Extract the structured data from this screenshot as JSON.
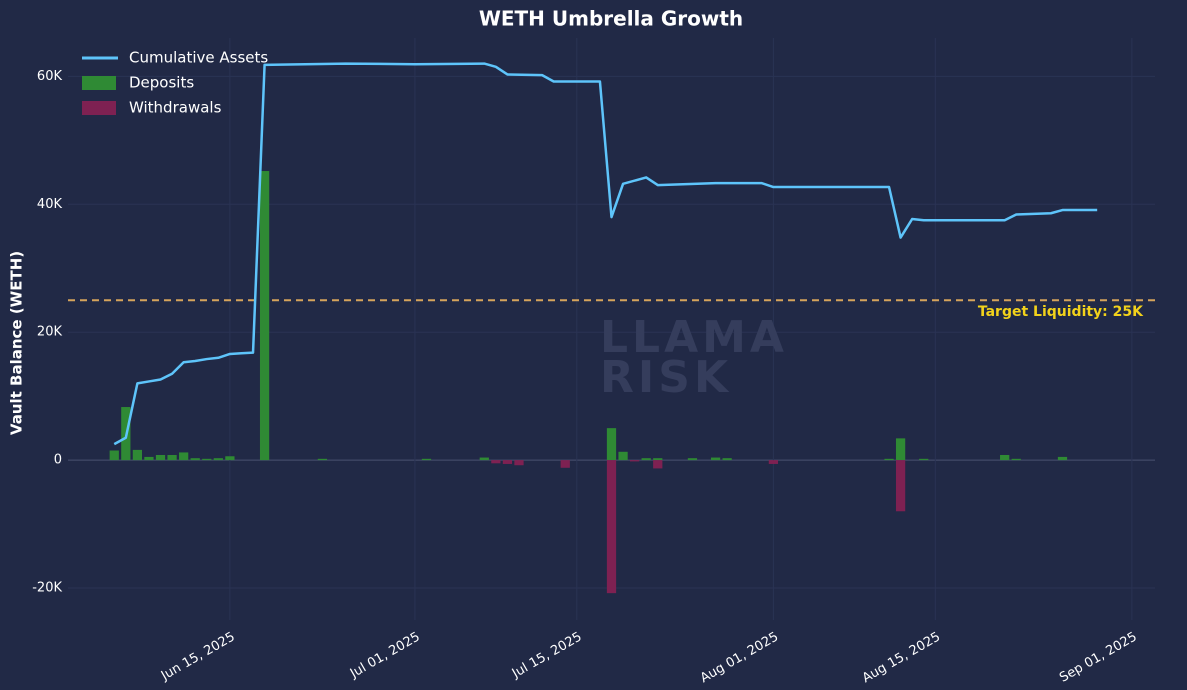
{
  "chart_data": {
    "type": "combo",
    "title": "WETH Umbrella Growth",
    "ylabel": "Vault Balance (WETH)",
    "xlim": [
      "2025-06-01",
      "2025-09-03"
    ],
    "xticks": [
      {
        "value": "2025-06-15",
        "label": "Jun 15, 2025"
      },
      {
        "value": "2025-07-01",
        "label": "Jul 01, 2025"
      },
      {
        "value": "2025-07-15",
        "label": "Jul 15, 2025"
      },
      {
        "value": "2025-08-01",
        "label": "Aug 01, 2025"
      },
      {
        "value": "2025-08-15",
        "label": "Aug 15, 2025"
      },
      {
        "value": "2025-09-01",
        "label": "Sep 01, 2025"
      }
    ],
    "ylim": [
      -25000,
      66000
    ],
    "yticks": [
      {
        "value": -20000,
        "label": "-20K"
      },
      0,
      {
        "value": 20000,
        "label": "20K"
      },
      {
        "value": 40000,
        "label": "40K"
      },
      {
        "value": 60000,
        "label": "60K"
      }
    ],
    "grid": true,
    "legend": "upper left",
    "series": [
      {
        "name": "Cumulative Assets",
        "type": "line",
        "color": "#5ec4fa",
        "x": [
          "2025-06-05",
          "2025-06-06",
          "2025-06-07",
          "2025-06-08",
          "2025-06-09",
          "2025-06-10",
          "2025-06-11",
          "2025-06-12",
          "2025-06-13",
          "2025-06-14",
          "2025-06-15",
          "2025-06-16",
          "2025-06-17",
          "2025-06-18",
          "2025-06-25",
          "2025-07-01",
          "2025-07-07",
          "2025-07-08",
          "2025-07-09",
          "2025-07-12",
          "2025-07-13",
          "2025-07-17",
          "2025-07-18",
          "2025-07-19",
          "2025-07-21",
          "2025-07-22",
          "2025-07-27",
          "2025-07-31",
          "2025-08-01",
          "2025-08-11",
          "2025-08-12",
          "2025-08-13",
          "2025-08-14",
          "2025-08-21",
          "2025-08-22",
          "2025-08-25",
          "2025-08-26",
          "2025-08-29"
        ],
        "values": [
          2500,
          3500,
          12000,
          12300,
          12600,
          13500,
          15300,
          15500,
          15800,
          16000,
          16600,
          16700,
          16800,
          61800,
          62000,
          61900,
          62000,
          61500,
          60300,
          60200,
          59200,
          59200,
          38000,
          43200,
          44200,
          43000,
          43300,
          43300,
          42700,
          42700,
          34800,
          37700,
          37500,
          37500,
          38400,
          38600,
          39100,
          39100
        ]
      },
      {
        "name": "Deposits",
        "type": "bar",
        "color": "#2f8a34",
        "x": [
          "2025-06-05",
          "2025-06-06",
          "2025-06-07",
          "2025-06-08",
          "2025-06-09",
          "2025-06-10",
          "2025-06-11",
          "2025-06-12",
          "2025-06-13",
          "2025-06-14",
          "2025-06-15",
          "2025-06-18",
          "2025-06-23",
          "2025-07-02",
          "2025-07-07",
          "2025-07-18",
          "2025-07-19",
          "2025-07-21",
          "2025-07-22",
          "2025-07-25",
          "2025-07-27",
          "2025-07-28",
          "2025-08-11",
          "2025-08-12",
          "2025-08-14",
          "2025-08-21",
          "2025-08-22",
          "2025-08-26"
        ],
        "values": [
          1500,
          8300,
          1600,
          500,
          800,
          800,
          1200,
          300,
          200,
          300,
          600,
          45200,
          200,
          200,
          400,
          5000,
          1300,
          300,
          300,
          300,
          400,
          300,
          200,
          3400,
          200,
          800,
          200,
          500
        ]
      },
      {
        "name": "Withdrawals",
        "type": "bar",
        "color": "#7e2152",
        "x": [
          "2025-07-08",
          "2025-07-09",
          "2025-07-10",
          "2025-07-14",
          "2025-07-18",
          "2025-07-20",
          "2025-07-22",
          "2025-08-01",
          "2025-08-12"
        ],
        "values": [
          -500,
          -600,
          -800,
          -1200,
          -20800,
          -200,
          -1300,
          -600,
          -8000
        ]
      }
    ],
    "reference_line": {
      "value": 25000,
      "label": "Target Liquidity: 25K",
      "color": "#d6a45c",
      "label_color": "#f2d21b"
    },
    "watermark": [
      "LLAMA",
      "RISK"
    ]
  }
}
